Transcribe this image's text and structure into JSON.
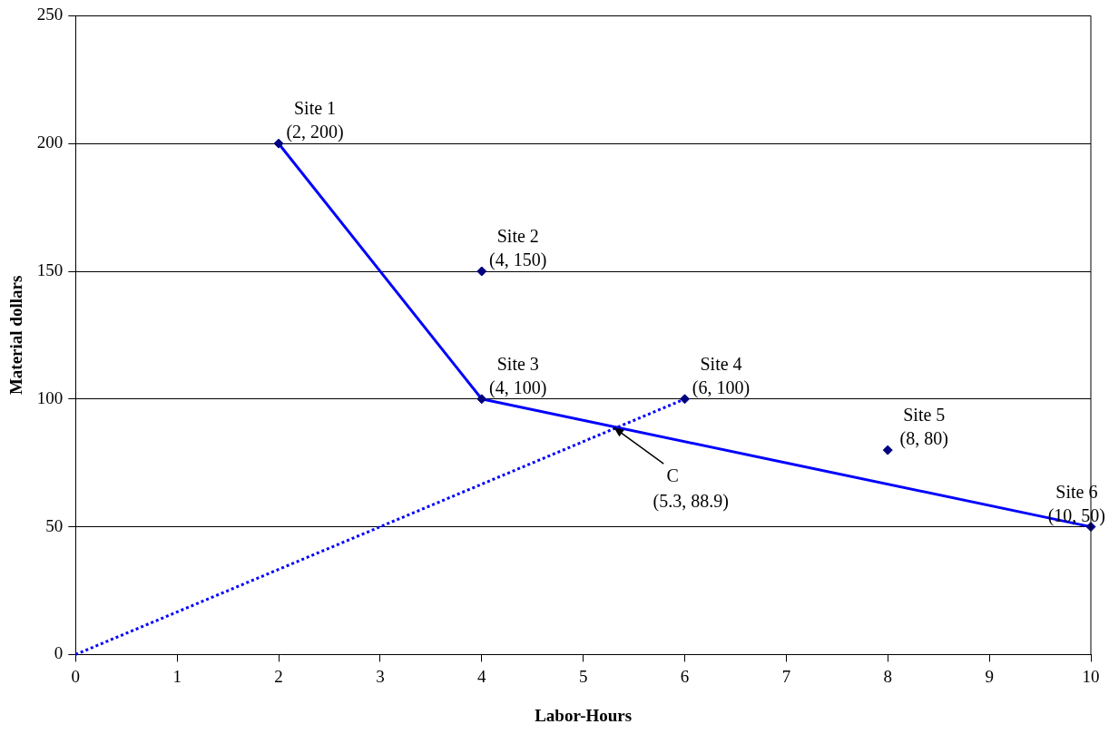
{
  "chart_data": {
    "type": "scatter",
    "xlabel": "Labor-Hours",
    "ylabel": "Material dollars",
    "xlim": [
      0,
      10
    ],
    "xticks": [
      0,
      1,
      2,
      3,
      4,
      5,
      6,
      7,
      8,
      9,
      10
    ],
    "ylim": [
      0,
      250
    ],
    "yticks": [
      0,
      50,
      100,
      150,
      200,
      250
    ],
    "grid": "y",
    "legend": false,
    "series": [
      {
        "type": "line",
        "color": "#0000ff",
        "line_style": "solid",
        "marker": "none",
        "x": [
          2,
          4,
          10
        ],
        "values": [
          200,
          100,
          50
        ]
      },
      {
        "type": "line",
        "color": "#0000ff",
        "line_style": "dotted",
        "marker": "none",
        "x": [
          0,
          6
        ],
        "values": [
          0,
          100
        ]
      },
      {
        "type": "scatter",
        "color": "#000080",
        "marker": "diamond",
        "x": [
          2,
          4,
          4,
          6,
          8,
          10
        ],
        "values": [
          200,
          150,
          100,
          100,
          80,
          50
        ]
      }
    ],
    "annotations": [
      {
        "text": "Site 1\n(2, 200)",
        "x": 2,
        "y": 200
      },
      {
        "text": "Site 2\n(4, 150)",
        "x": 4,
        "y": 150
      },
      {
        "text": "Site 3\n(4, 100)",
        "x": 4,
        "y": 100
      },
      {
        "text": "Site 4\n(6, 100)",
        "x": 6,
        "y": 100
      },
      {
        "text": "Site 5\n(8, 80)",
        "x": 8,
        "y": 80
      },
      {
        "text": "Site 6\n(10, 50)",
        "x": 10,
        "y": 50
      },
      {
        "text": "C\n(5.3, 88.9)",
        "x": 5.3,
        "y": 88.9
      }
    ]
  }
}
